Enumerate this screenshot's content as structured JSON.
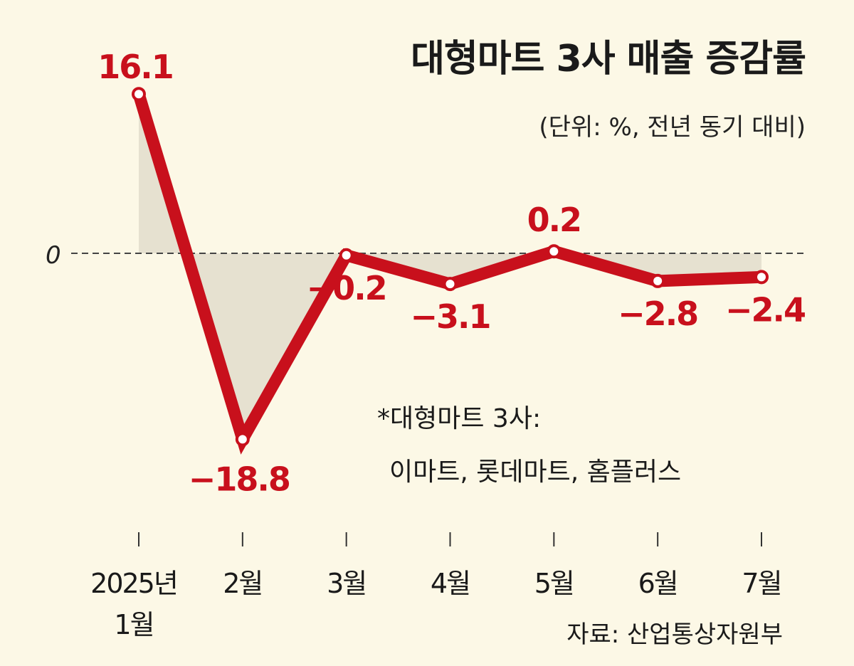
{
  "chart_data": {
    "type": "line",
    "title": "대형마트 3사 매출 증감률",
    "subtitle": "(단위: %, 전년 동기 대비)",
    "categories": [
      [
        "2025년",
        "1월"
      ],
      [
        "2월"
      ],
      [
        "3월"
      ],
      [
        "4월"
      ],
      [
        "5월"
      ],
      [
        "6월"
      ],
      [
        "7월"
      ]
    ],
    "series": [
      {
        "values": [
          16.1,
          -18.8,
          -0.2,
          -3.1,
          0.2,
          -2.8,
          -2.4
        ],
        "color": "#c8101c"
      }
    ],
    "value_labels": [
      "16.1",
      "−18.8",
      "−0.2",
      "−3.1",
      "0.2",
      "−2.8",
      "−2.4"
    ],
    "zero_label": "0",
    "ylim": [
      -20,
      17
    ],
    "fill_color": "#e6e1d0",
    "zero_line": "dashed",
    "note": [
      "*대형마트 3사:",
      "이마트, 롯데마트, 홈플러스"
    ],
    "source": "자료: 산업통상자원부"
  }
}
